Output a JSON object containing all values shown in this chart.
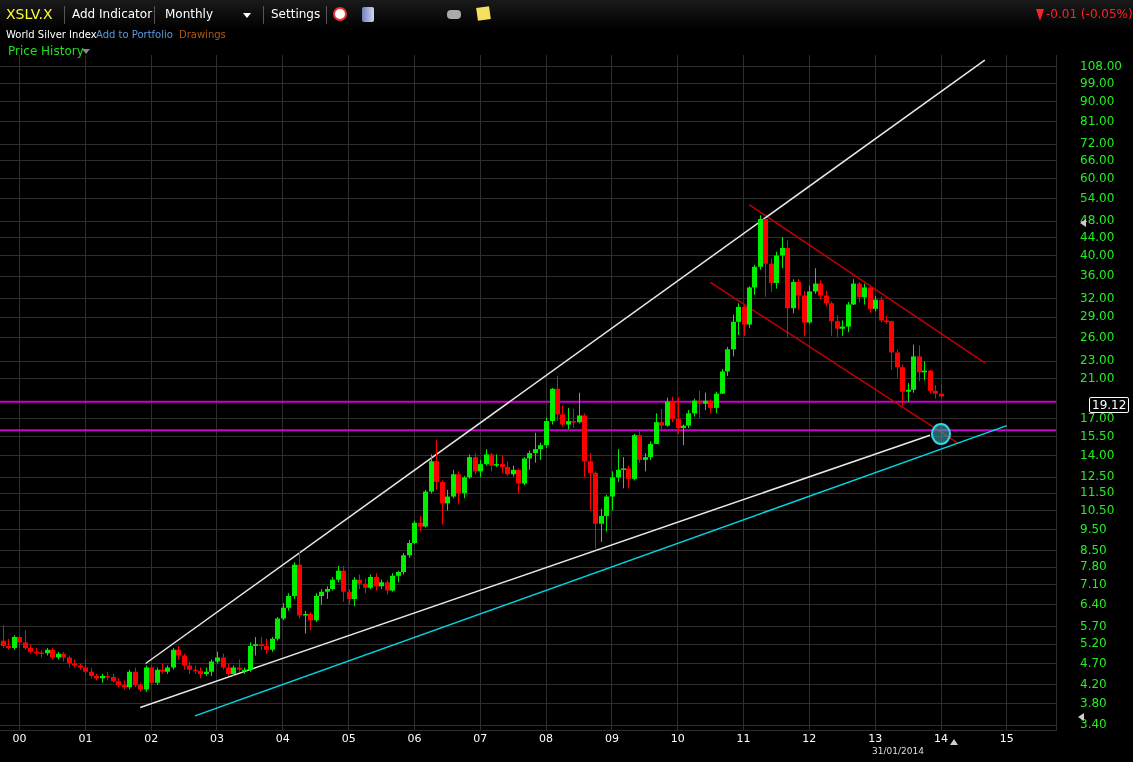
{
  "chart_data": {
    "type": "candlestick",
    "title": "XSLV.X",
    "subtitle": "World Silver Index",
    "annotations": [
      "Add Indicator",
      "Monthly",
      "Settings",
      "-0.01 (-0.05%)",
      "Add to Portfolio",
      "Drawings",
      "Price History",
      "19.12",
      "31/01/2014"
    ],
    "colors": [
      "#ff0000",
      "#ff0000",
      "#00ee00",
      "#ff0000",
      "#ff0000",
      "#ff0000",
      "#ff0000",
      "#ff0000",
      "#00ee00",
      "#ff0000",
      "#00ee00",
      "#ff0000",
      "#ff0000",
      "#ff0000",
      "#ff0000",
      "#ff0000",
      "#ff0000",
      "#ff0000",
      "#00ee00",
      "#ff0000",
      "#ff0000",
      "#ff0000",
      "#ff0000",
      "#00ee00",
      "#ff0000",
      "#ff0000",
      "#00ee00",
      "#ff0000",
      "#00ee00",
      "#ff0000",
      "#00ee00",
      "#00ee00",
      "#ff0000",
      "#ff0000",
      "#ff0000",
      "#ff0000",
      "#ff0000",
      "#00ee00",
      "#00ee00",
      "#00ee00",
      "#ff0000",
      "#ff0000",
      "#00ee00",
      "#ff0000",
      "#00ee00",
      "#00ee00",
      "#00ee00",
      "#ff0000",
      "#ff0000",
      "#00ee00",
      "#00ee00",
      "#00ee00",
      "#00ee00",
      "#00ee00",
      "#ff0000",
      "#00ee00",
      "#ff0000",
      "#00ee00",
      "#00ee00",
      "#00ee00",
      "#00ee00",
      "#00ee00",
      "#ff0000",
      "#ff0000",
      "#00ee00",
      "#ff0000",
      "#ff0000",
      "#00ee00",
      "#ff0000",
      "#00ee00",
      "#ff0000",
      "#00ee00",
      "#00ee00",
      "#00ee00",
      "#00ee00",
      "#00ee00",
      "#ff0000",
      "#00ee00",
      "#00ee00",
      "#ff0000",
      "#ff0000",
      "#00ee00",
      "#00ee00",
      "#ff0000",
      "#00ee00",
      "#00ee00",
      "#ff0000",
      "#00ee00",
      "#00ee00",
      "#ff0000",
      "#00ee00",
      "#ff0000",
      "#ff0000",
      "#00ee00",
      "#ff0000",
      "#00ee00",
      "#00ee00",
      "#00ee00",
      "#00ee00",
      "#00ee00",
      "#00ee00",
      "#ff0000",
      "#ff0000",
      "#00ee00",
      "#ff0000",
      "#00ee00",
      "#ff0000",
      "#ff0000",
      "#ff0000",
      "#00ee00",
      "#00ee00",
      "#00ee00",
      "#00ee00",
      "#00ee00",
      "#ff0000",
      "#00ee00",
      "#ff0000",
      "#00ee00",
      "#00ee00",
      "#00ee00",
      "#ff0000",
      "#00ee00",
      "#ff0000",
      "#ff0000",
      "#00ee00",
      "#00ee00",
      "#00ee00",
      "#ff0000",
      "#00ee00",
      "#ff0000",
      "#00ee00",
      "#00ee00",
      "#00ee00",
      "#00ee00",
      "#00ee00",
      "#ff0000",
      "#00ee00",
      "#00ee00",
      "#00ee00",
      "#ff0000",
      "#ff0000",
      "#00ee00",
      "#00ee00",
      "#ff0000",
      "#00ee00",
      "#ff0000",
      "#ff0000",
      "#00ee00",
      "#00ee00",
      "#ff0000",
      "#ff0000",
      "#ff0000",
      "#ff0000",
      "#00ee00",
      "#00ee00",
      "#00ee00",
      "#ff0000",
      "#00ee00",
      "#ff0000",
      "#00ee00",
      "#ff0000",
      "#ff0000",
      "#ff0000",
      "#ff0000",
      "#ff0000",
      "#00ee00",
      "#00ee00",
      "#ff0000",
      "#00ee00",
      "#ff0000",
      "#ff0000",
      "#ff0000"
    ],
    "x": [
      "1999-10",
      "1999-11",
      "1999-12",
      "2000-01",
      "2000-02",
      "2000-03",
      "2000-04",
      "2000-05",
      "2000-06",
      "2000-07",
      "2000-08",
      "2000-09",
      "2000-10",
      "2000-11",
      "2000-12",
      "2001-01",
      "2001-02",
      "2001-03",
      "2001-04",
      "2001-05",
      "2001-06",
      "2001-07",
      "2001-08",
      "2001-09",
      "2001-10",
      "2001-11",
      "2001-12",
      "2002-01",
      "2002-02",
      "2002-03",
      "2002-04",
      "2002-05",
      "2002-06",
      "2002-07",
      "2002-08",
      "2002-09",
      "2002-10",
      "2002-11",
      "2002-12",
      "2003-01",
      "2003-02",
      "2003-03",
      "2003-04",
      "2003-05",
      "2003-06",
      "2003-07",
      "2003-08",
      "2003-09",
      "2003-10",
      "2003-11",
      "2003-12",
      "2004-01",
      "2004-02",
      "2004-03",
      "2004-04",
      "2004-05",
      "2004-06",
      "2004-07",
      "2004-08",
      "2004-09",
      "2004-10",
      "2004-11",
      "2004-12",
      "2005-01",
      "2005-02",
      "2005-03",
      "2005-04",
      "2005-05",
      "2005-06",
      "2005-07",
      "2005-08",
      "2005-09",
      "2005-10",
      "2005-11",
      "2005-12",
      "2006-01",
      "2006-02",
      "2006-03",
      "2006-04",
      "2006-05",
      "2006-06",
      "2006-07",
      "2006-08",
      "2006-09",
      "2006-10",
      "2006-11",
      "2006-12",
      "2007-01",
      "2007-02",
      "2007-03",
      "2007-04",
      "2007-05",
      "2007-06",
      "2007-07",
      "2007-08",
      "2007-09",
      "2007-10",
      "2007-11",
      "2007-12",
      "2008-01",
      "2008-02",
      "2008-03",
      "2008-04",
      "2008-05",
      "2008-06",
      "2008-07",
      "2008-08",
      "2008-09",
      "2008-10",
      "2008-11",
      "2008-12",
      "2009-01",
      "2009-02",
      "2009-03",
      "2009-04",
      "2009-05",
      "2009-06",
      "2009-07",
      "2009-08",
      "2009-09",
      "2009-10",
      "2009-11",
      "2009-12",
      "2010-01",
      "2010-02",
      "2010-03",
      "2010-04",
      "2010-05",
      "2010-06",
      "2010-07",
      "2010-08",
      "2010-09",
      "2010-10",
      "2010-11",
      "2010-12",
      "2011-01",
      "2011-02",
      "2011-03",
      "2011-04",
      "2011-05",
      "2011-06",
      "2011-07",
      "2011-08",
      "2011-09",
      "2011-10",
      "2011-11",
      "2011-12",
      "2012-01",
      "2012-02",
      "2012-03",
      "2012-04",
      "2012-05",
      "2012-06",
      "2012-07",
      "2012-08",
      "2012-09",
      "2012-10",
      "2012-11",
      "2012-12",
      "2013-01",
      "2013-02",
      "2013-03",
      "2013-04",
      "2013-05",
      "2013-06",
      "2013-07",
      "2013-08",
      "2013-09",
      "2013-10",
      "2013-11",
      "2013-12",
      "2014-01"
    ],
    "ohlc": [
      [
        5.3,
        5.75,
        5.1,
        5.15
      ],
      [
        5.15,
        5.35,
        5.05,
        5.1
      ],
      [
        5.1,
        5.45,
        5.05,
        5.4
      ],
      [
        5.4,
        5.45,
        5.1,
        5.25
      ],
      [
        5.25,
        5.6,
        5.05,
        5.1
      ],
      [
        5.1,
        5.2,
        4.95,
        5.0
      ],
      [
        5.0,
        5.1,
        4.9,
        4.98
      ],
      [
        4.98,
        5.05,
        4.85,
        4.96
      ],
      [
        4.96,
        5.1,
        4.9,
        5.05
      ],
      [
        5.05,
        5.1,
        4.8,
        4.85
      ],
      [
        4.85,
        5.0,
        4.8,
        4.95
      ],
      [
        4.95,
        5.0,
        4.75,
        4.85
      ],
      [
        4.85,
        4.9,
        4.6,
        4.7
      ],
      [
        4.7,
        4.8,
        4.6,
        4.65
      ],
      [
        4.65,
        4.7,
        4.55,
        4.6
      ],
      [
        4.6,
        4.8,
        4.45,
        4.5
      ],
      [
        4.5,
        4.6,
        4.35,
        4.4
      ],
      [
        4.4,
        4.45,
        4.3,
        4.35
      ],
      [
        4.35,
        4.45,
        4.25,
        4.4
      ],
      [
        4.4,
        4.5,
        4.3,
        4.38
      ],
      [
        4.38,
        4.45,
        4.25,
        4.28
      ],
      [
        4.28,
        4.35,
        4.15,
        4.2
      ],
      [
        4.2,
        4.3,
        4.1,
        4.15
      ],
      [
        4.15,
        4.55,
        4.1,
        4.5
      ],
      [
        4.5,
        4.6,
        4.15,
        4.2
      ],
      [
        4.2,
        4.25,
        4.05,
        4.1
      ],
      [
        4.1,
        4.65,
        4.05,
        4.6
      ],
      [
        4.6,
        4.65,
        4.2,
        4.25
      ],
      [
        4.25,
        4.6,
        4.2,
        4.55
      ],
      [
        4.55,
        4.7,
        4.45,
        4.5
      ],
      [
        4.5,
        4.65,
        4.45,
        4.6
      ],
      [
        4.6,
        5.1,
        4.55,
        5.05
      ],
      [
        5.05,
        5.15,
        4.8,
        4.9
      ],
      [
        4.9,
        4.95,
        4.55,
        4.65
      ],
      [
        4.65,
        4.75,
        4.45,
        4.55
      ],
      [
        4.55,
        4.65,
        4.45,
        4.52
      ],
      [
        4.52,
        4.6,
        4.35,
        4.45
      ],
      [
        4.45,
        4.6,
        4.4,
        4.5
      ],
      [
        4.5,
        4.8,
        4.4,
        4.75
      ],
      [
        4.75,
        5.0,
        4.7,
        4.85
      ],
      [
        4.85,
        4.95,
        4.55,
        4.6
      ],
      [
        4.6,
        4.7,
        4.4,
        4.45
      ],
      [
        4.45,
        4.65,
        4.4,
        4.6
      ],
      [
        4.6,
        4.8,
        4.5,
        4.55
      ],
      [
        4.55,
        4.6,
        4.45,
        4.55
      ],
      [
        4.55,
        5.25,
        4.5,
        5.15
      ],
      [
        5.15,
        5.4,
        4.9,
        5.2
      ],
      [
        5.2,
        5.4,
        5.05,
        5.15
      ],
      [
        5.15,
        5.35,
        4.95,
        5.05
      ],
      [
        5.05,
        5.4,
        5.0,
        5.35
      ],
      [
        5.35,
        6.0,
        5.3,
        5.95
      ],
      [
        5.95,
        6.45,
        5.9,
        6.3
      ],
      [
        6.3,
        6.8,
        6.2,
        6.7
      ],
      [
        6.7,
        8.0,
        6.6,
        7.9
      ],
      [
        7.9,
        8.45,
        5.95,
        6.05
      ],
      [
        6.05,
        6.2,
        5.5,
        6.1
      ],
      [
        6.1,
        6.15,
        5.6,
        5.9
      ],
      [
        5.9,
        6.8,
        5.85,
        6.7
      ],
      [
        6.7,
        6.95,
        6.4,
        6.85
      ],
      [
        6.85,
        7.05,
        6.6,
        6.95
      ],
      [
        6.95,
        7.4,
        6.9,
        7.3
      ],
      [
        7.3,
        7.85,
        7.2,
        7.65
      ],
      [
        7.65,
        7.85,
        6.5,
        6.85
      ],
      [
        6.85,
        6.95,
        6.4,
        6.6
      ],
      [
        6.6,
        7.4,
        6.35,
        7.3
      ],
      [
        7.3,
        7.5,
        6.95,
        7.15
      ],
      [
        7.15,
        7.35,
        6.8,
        7.0
      ],
      [
        7.0,
        7.5,
        6.95,
        7.4
      ],
      [
        7.4,
        7.55,
        6.9,
        7.05
      ],
      [
        7.05,
        7.3,
        6.95,
        7.2
      ],
      [
        7.2,
        7.3,
        6.75,
        6.9
      ],
      [
        6.9,
        7.55,
        6.85,
        7.45
      ],
      [
        7.45,
        7.65,
        7.2,
        7.6
      ],
      [
        7.6,
        8.4,
        7.5,
        8.3
      ],
      [
        8.3,
        9.0,
        8.2,
        8.85
      ],
      [
        8.85,
        9.95,
        8.8,
        9.85
      ],
      [
        9.85,
        10.2,
        9.4,
        9.65
      ],
      [
        9.65,
        11.7,
        9.6,
        11.6
      ],
      [
        11.6,
        14.1,
        11.5,
        13.6
      ],
      [
        13.6,
        15.2,
        11.7,
        12.2
      ],
      [
        12.2,
        12.3,
        9.75,
        10.9
      ],
      [
        10.9,
        11.7,
        10.5,
        11.3
      ],
      [
        11.3,
        13.0,
        11.2,
        12.7
      ],
      [
        12.7,
        12.9,
        10.9,
        11.5
      ],
      [
        11.5,
        12.6,
        11.2,
        12.5
      ],
      [
        12.5,
        14.1,
        12.4,
        13.9
      ],
      [
        13.9,
        14.2,
        12.7,
        12.9
      ],
      [
        12.9,
        13.7,
        12.5,
        13.4
      ],
      [
        13.4,
        14.5,
        13.3,
        14.1
      ],
      [
        14.1,
        14.2,
        12.9,
        13.3
      ],
      [
        13.3,
        14.1,
        13.2,
        13.4
      ],
      [
        13.4,
        14.0,
        12.8,
        13.2
      ],
      [
        13.2,
        13.6,
        12.6,
        12.7
      ],
      [
        12.7,
        13.3,
        12.55,
        13.0
      ],
      [
        13.0,
        13.1,
        11.5,
        12.1
      ],
      [
        12.1,
        13.9,
        12.0,
        13.8
      ],
      [
        13.8,
        14.4,
        13.0,
        14.2
      ],
      [
        14.2,
        15.8,
        13.5,
        14.5
      ],
      [
        14.5,
        15.0,
        13.7,
        14.8
      ],
      [
        14.8,
        17.1,
        14.6,
        16.8
      ],
      [
        16.8,
        20.0,
        16.5,
        19.9
      ],
      [
        19.9,
        21.3,
        16.8,
        17.4
      ],
      [
        17.4,
        18.2,
        16.3,
        16.5
      ],
      [
        16.5,
        18.0,
        16.1,
        16.8
      ],
      [
        16.8,
        17.9,
        16.2,
        16.7
      ],
      [
        16.7,
        19.5,
        16.6,
        17.3
      ],
      [
        17.3,
        17.5,
        12.5,
        13.6
      ],
      [
        13.6,
        14.2,
        10.5,
        12.8
      ],
      [
        12.8,
        12.9,
        8.6,
        9.8
      ],
      [
        9.8,
        10.6,
        8.9,
        10.2
      ],
      [
        10.2,
        11.4,
        9.4,
        11.3
      ],
      [
        11.3,
        12.9,
        10.5,
        12.5
      ],
      [
        12.5,
        14.5,
        12.2,
        13.0
      ],
      [
        13.0,
        13.9,
        11.8,
        13.1
      ],
      [
        13.1,
        13.3,
        11.8,
        12.4
      ],
      [
        12.4,
        15.7,
        12.3,
        15.6
      ],
      [
        15.6,
        16.1,
        13.5,
        13.7
      ],
      [
        13.7,
        14.2,
        12.9,
        13.9
      ],
      [
        13.9,
        15.1,
        13.7,
        14.9
      ],
      [
        14.9,
        17.5,
        14.9,
        16.7
      ],
      [
        16.7,
        17.9,
        15.9,
        16.4
      ],
      [
        16.4,
        19.0,
        16.3,
        18.6
      ],
      [
        18.6,
        19.1,
        16.7,
        17.0
      ],
      [
        17.0,
        19.0,
        15.7,
        16.2
      ],
      [
        16.2,
        16.5,
        14.8,
        16.4
      ],
      [
        16.4,
        17.8,
        16.2,
        17.5
      ],
      [
        17.5,
        18.9,
        17.2,
        18.7
      ],
      [
        18.7,
        19.7,
        17.1,
        18.4
      ],
      [
        18.4,
        19.5,
        17.8,
        18.7
      ],
      [
        18.7,
        18.8,
        17.5,
        18.0
      ],
      [
        18.0,
        19.6,
        17.5,
        19.4
      ],
      [
        19.4,
        22.1,
        19.4,
        21.8
      ],
      [
        21.8,
        24.8,
        21.3,
        24.5
      ],
      [
        24.5,
        29.4,
        23.6,
        28.3
      ],
      [
        28.3,
        31.2,
        26.4,
        30.6
      ],
      [
        30.6,
        30.8,
        26.3,
        27.9
      ],
      [
        27.9,
        34.1,
        27.4,
        33.9
      ],
      [
        33.9,
        38.2,
        32.6,
        37.8
      ],
      [
        37.8,
        49.5,
        37.2,
        48.6
      ],
      [
        48.6,
        48.8,
        32.3,
        38.4
      ],
      [
        38.4,
        39.5,
        33.1,
        34.7
      ],
      [
        34.7,
        40.9,
        33.7,
        40.1
      ],
      [
        40.1,
        44.2,
        37.5,
        41.7
      ],
      [
        41.7,
        43.4,
        26.1,
        30.4
      ],
      [
        30.4,
        35.4,
        29.6,
        34.9
      ],
      [
        34.9,
        35.4,
        30.2,
        32.5
      ],
      [
        32.5,
        33.3,
        26.2,
        28.2
      ],
      [
        28.2,
        34.2,
        28.0,
        33.2
      ],
      [
        33.2,
        37.5,
        32.8,
        34.6
      ],
      [
        34.6,
        35.2,
        31.8,
        32.5
      ],
      [
        32.5,
        33.3,
        30.7,
        31.2
      ],
      [
        31.2,
        31.5,
        26.3,
        28.4
      ],
      [
        28.4,
        29.3,
        26.1,
        27.3
      ],
      [
        27.3,
        28.5,
        26.3,
        27.6
      ],
      [
        27.6,
        31.4,
        26.8,
        31.0
      ],
      [
        31.0,
        35.4,
        30.9,
        34.6
      ],
      [
        34.6,
        34.9,
        31.3,
        32.2
      ],
      [
        32.2,
        34.6,
        31.0,
        33.9
      ],
      [
        33.9,
        34.1,
        29.7,
        30.3
      ],
      [
        30.3,
        32.4,
        29.9,
        31.8
      ],
      [
        31.8,
        32.3,
        28.2,
        28.5
      ],
      [
        28.5,
        29.2,
        28.0,
        28.4
      ],
      [
        28.4,
        28.5,
        22.0,
        24.1
      ],
      [
        24.1,
        24.5,
        21.1,
        22.3
      ],
      [
        22.3,
        22.6,
        18.2,
        19.6
      ],
      [
        19.6,
        20.5,
        18.6,
        19.8
      ],
      [
        19.8,
        25.1,
        19.5,
        23.6
      ],
      [
        23.6,
        25.0,
        20.7,
        21.7
      ],
      [
        21.7,
        23.0,
        20.8,
        21.9
      ],
      [
        21.9,
        22.0,
        19.4,
        19.7
      ],
      [
        19.7,
        20.3,
        18.9,
        19.4
      ],
      [
        19.4,
        20.4,
        19.0,
        19.12
      ]
    ],
    "series": [
      {
        "type": "line",
        "color": "#e8e8e8",
        "x": [
          "2001-12",
          "2014-09"
        ],
        "values": [
          4.7,
          112
        ]
      },
      {
        "type": "line",
        "color": "#e8e8e8",
        "x": [
          "2001-11",
          "2013-11"
        ],
        "values": [
          3.73,
          15.6
        ]
      },
      {
        "type": "line",
        "color": "#00d8e8",
        "x": [
          "2002-09",
          "2015-01"
        ],
        "values": [
          3.57,
          16.4
        ]
      },
      {
        "type": "line",
        "color": "#c00000",
        "x": [
          "2011-02",
          "2014-09"
        ],
        "values": [
          52.4,
          22.8
        ]
      },
      {
        "type": "line",
        "color": "#c00000",
        "x": [
          "2010-07",
          "2014-04"
        ],
        "values": [
          34.8,
          15.0
        ]
      }
    ],
    "ref_lines": [
      {
        "axis": "y",
        "value": 18.6,
        "color": "#cc00cc"
      },
      {
        "axis": "y",
        "value": 16.0,
        "color": "#cc00cc"
      }
    ],
    "log": "y",
    "grid": true,
    "legend": false,
    "marker": "none",
    "line_style": "solid",
    "xlim": [
      "1999-09-15",
      "2015-10-01"
    ],
    "xticks": [
      {
        "value": "2000-01-01",
        "label": "00"
      },
      {
        "value": "2001-01-01",
        "label": "01"
      },
      {
        "value": "2002-01-01",
        "label": "02"
      },
      {
        "value": "2003-01-01",
        "label": "03"
      },
      {
        "value": "2004-01-01",
        "label": "04"
      },
      {
        "value": "2005-01-01",
        "label": "05"
      },
      {
        "value": "2006-01-01",
        "label": "06"
      },
      {
        "value": "2007-01-01",
        "label": "07"
      },
      {
        "value": "2008-01-01",
        "label": "08"
      },
      {
        "value": "2009-01-01",
        "label": "09"
      },
      {
        "value": "2010-01-01",
        "label": "10"
      },
      {
        "value": "2011-01-01",
        "label": "11"
      },
      {
        "value": "2012-01-01",
        "label": "12"
      },
      {
        "value": "2013-01-01",
        "label": "13"
      },
      {
        "value": "2014-01-01",
        "label": "14"
      },
      {
        "value": "2015-01-01",
        "label": "15"
      }
    ],
    "ylim": [
      3.3,
      115
    ],
    "yticks": [
      {
        "value": 108,
        "label": "108.00"
      },
      {
        "value": 99,
        "label": "99.00"
      },
      {
        "value": 90,
        "label": "90.00"
      },
      {
        "value": 81,
        "label": "81.00"
      },
      {
        "value": 72,
        "label": "72.00"
      },
      {
        "value": 66,
        "label": "66.00"
      },
      {
        "value": 60,
        "label": "60.00"
      },
      {
        "value": 54,
        "label": "54.00"
      },
      {
        "value": 48,
        "label": "48.00"
      },
      {
        "value": 44,
        "label": "44.00"
      },
      {
        "value": 40,
        "label": "40.00"
      },
      {
        "value": 36,
        "label": "36.00"
      },
      {
        "value": 32,
        "label": "32.00"
      },
      {
        "value": 29,
        "label": "29.00"
      },
      {
        "value": 26,
        "label": "26.00"
      },
      {
        "value": 23,
        "label": "23.00"
      },
      {
        "value": 21,
        "label": "21.00"
      },
      {
        "value": 17,
        "label": "17.00"
      },
      {
        "value": 15.5,
        "label": "15.50"
      },
      {
        "value": 14,
        "label": "14.00"
      },
      {
        "value": 12.5,
        "label": "12.50"
      },
      {
        "value": 11.5,
        "label": "11.50"
      },
      {
        "value": 10.5,
        "label": "10.50"
      },
      {
        "value": 9.5,
        "label": "9.50"
      },
      {
        "value": 8.5,
        "label": "8.50"
      },
      {
        "value": 7.8,
        "label": "7.80"
      },
      {
        "value": 7.1,
        "label": "7.10"
      },
      {
        "value": 6.4,
        "label": "6.40"
      },
      {
        "value": 5.7,
        "label": "5.70"
      },
      {
        "value": 5.2,
        "label": "5.20"
      },
      {
        "value": 4.7,
        "label": "4.70"
      },
      {
        "value": 4.2,
        "label": "4.20"
      },
      {
        "value": 3.8,
        "label": "3.80"
      },
      {
        "value": 3.4,
        "label": "3.40"
      }
    ]
  }
}
